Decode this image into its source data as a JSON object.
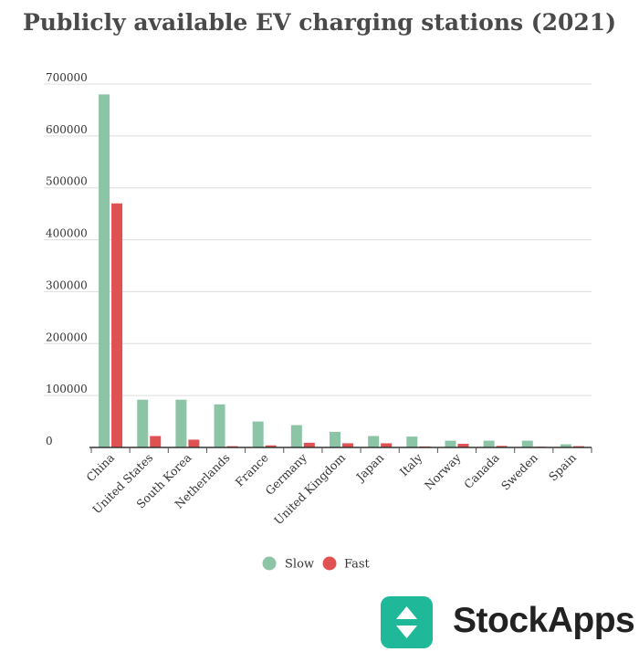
{
  "chart_data": {
    "type": "bar",
    "title": "Publicly available EV charging stations (2021)",
    "categories": [
      "China",
      "United States",
      "South Korea",
      "Netherlands",
      "France",
      "Germany",
      "United Kingdom",
      "Japan",
      "Italy",
      "Norway",
      "Canada",
      "Sweden",
      "Spain"
    ],
    "series": [
      {
        "name": "Slow",
        "color": "#8cc5a6",
        "values": [
          680000,
          92000,
          92000,
          83000,
          50000,
          43000,
          30000,
          22000,
          21000,
          13000,
          13000,
          13000,
          6000
        ]
      },
      {
        "name": "Fast",
        "color": "#e05252",
        "values": [
          470000,
          22000,
          15000,
          2500,
          4000,
          9000,
          8000,
          8000,
          2000,
          7000,
          3000,
          1500,
          2500
        ]
      }
    ],
    "yticks": [
      0,
      100000,
      200000,
      300000,
      400000,
      500000,
      600000,
      700000
    ],
    "ylim": [
      0,
      700000
    ],
    "xlabel": "",
    "ylabel": "",
    "grid": true,
    "legend_position": "bottom"
  },
  "brand": {
    "name": "StockApps",
    "logo_icon": "up-down-arrows-icon",
    "logo_color": "#1fb99a"
  }
}
